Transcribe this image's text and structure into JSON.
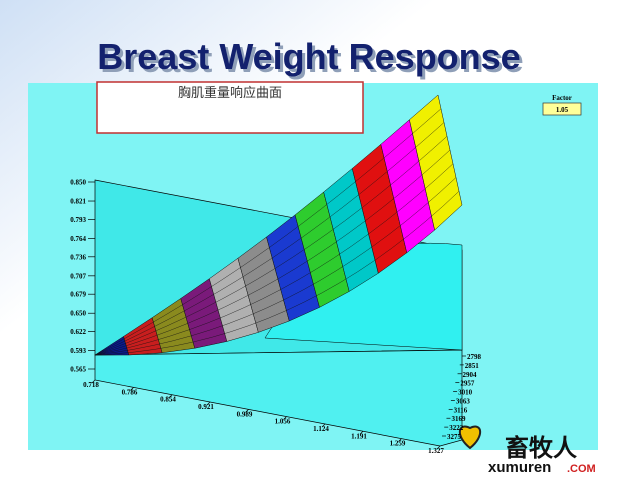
{
  "chart_data": {
    "type": "surface3d",
    "title": "Breast Weight Response",
    "annotation": "胸肌重量响应曲面",
    "factor_label": "Factor",
    "factor_value": {
      "value": 1.05,
      "label": "1.05"
    },
    "xlim": [
      0.718,
      1.327
    ],
    "xticks": [
      {
        "value": 0.718,
        "label": "0.718"
      },
      {
        "value": 0.786,
        "label": "0.786"
      },
      {
        "value": 0.854,
        "label": "0.854"
      },
      {
        "value": 0.921,
        "label": "0.921"
      },
      {
        "value": 0.989,
        "label": "0.989"
      },
      {
        "value": 1.056,
        "label": "1.056"
      },
      {
        "value": 1.124,
        "label": "1.124"
      },
      {
        "value": 1.191,
        "label": "1.191"
      },
      {
        "value": 1.259,
        "label": "1.259"
      },
      {
        "value": 1.327,
        "label": "1.327"
      }
    ],
    "ylim": [
      2798,
      3275
    ],
    "yticks": [
      2798,
      2851,
      2904,
      2957,
      3010,
      3063,
      3116,
      3169,
      3222,
      3275
    ],
    "zlim": [
      0.565,
      0.85
    ],
    "zticks": [
      {
        "value": 0.85,
        "label": "0.850"
      },
      {
        "value": 0.821,
        "label": "0.821"
      },
      {
        "value": 0.793,
        "label": "0.793"
      },
      {
        "value": 0.764,
        "label": "0.764"
      },
      {
        "value": 0.736,
        "label": "0.736"
      },
      {
        "value": 0.707,
        "label": "0.707"
      },
      {
        "value": 0.679,
        "label": "0.679"
      },
      {
        "value": 0.65,
        "label": "0.650"
      },
      {
        "value": 0.622,
        "label": "0.622"
      },
      {
        "value": 0.593,
        "label": "0.593"
      },
      {
        "value": 0.565,
        "label": "0.565"
      }
    ],
    "band_colors": [
      "#0a1a8c",
      "#c81e1e",
      "#8a8a1e",
      "#7a1a7a",
      "#b0b0b0",
      "#8c8c8c",
      "#1a3ad0",
      "#2ecc2e",
      "#00c8c8",
      "#e01010",
      "#ff00ff",
      "#f0f000"
    ],
    "watermark": {
      "name": "畜牧人",
      "site": "xumuren",
      "tld": ".COM"
    }
  }
}
